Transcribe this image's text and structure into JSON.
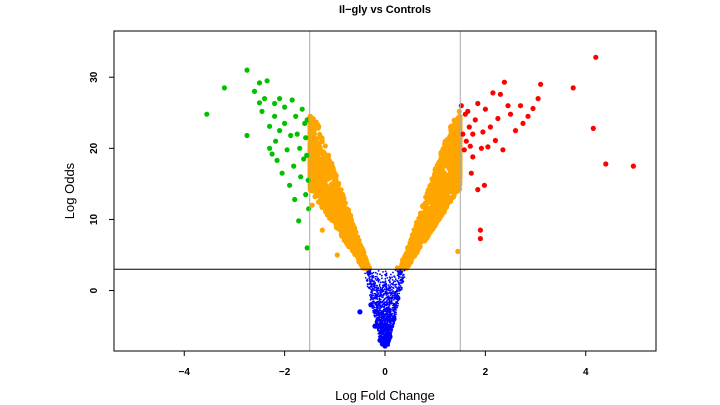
{
  "chart_data": {
    "type": "scatter",
    "title": "Il−gly vs Controls",
    "xlabel": "Log Fold Change",
    "ylabel": "Log Odds",
    "xlim": [
      -5.4,
      5.4
    ],
    "ylim": [
      -8.5,
      36.5
    ],
    "x_ticks": [
      {
        "value": -4,
        "label": "−4"
      },
      {
        "value": -2,
        "label": "−2"
      },
      {
        "value": 0,
        "label": "0"
      },
      {
        "value": 2,
        "label": "2"
      },
      {
        "value": 4,
        "label": "4"
      }
    ],
    "y_ticks": [
      {
        "value": 0,
        "label": "0"
      },
      {
        "value": 10,
        "label": "10"
      },
      {
        "value": 20,
        "label": "20"
      },
      {
        "value": 30,
        "label": "30"
      }
    ],
    "grid": false,
    "reference_lines": {
      "vertical": [
        -1.5,
        1.5
      ],
      "horizontal": [
        3
      ]
    },
    "colors": {
      "not_significant": "#0000ff",
      "significant_small_change": "#ffa500",
      "down_regulated": "#00c000",
      "up_regulated": "#ff0000"
    },
    "series": [
      {
        "color": "#00c000",
        "points": [
          [
            -3.55,
            24.8
          ],
          [
            -3.2,
            28.5
          ],
          [
            -2.75,
            31.0
          ],
          [
            -2.75,
            21.8
          ],
          [
            -2.6,
            28.0
          ],
          [
            -2.5,
            29.2
          ],
          [
            -2.5,
            26.4
          ],
          [
            -2.45,
            25.2
          ],
          [
            -2.4,
            27.0
          ],
          [
            -2.35,
            29.5
          ],
          [
            -2.3,
            23.1
          ],
          [
            -2.3,
            20.0
          ],
          [
            -2.25,
            19.2
          ],
          [
            -2.2,
            26.3
          ],
          [
            -2.2,
            24.5
          ],
          [
            -2.18,
            21.0
          ],
          [
            -2.15,
            18.3
          ],
          [
            -2.1,
            27.0
          ],
          [
            -2.1,
            22.5
          ],
          [
            -2.05,
            16.5
          ],
          [
            -2.0,
            25.8
          ],
          [
            -2.0,
            23.5
          ],
          [
            -1.95,
            19.8
          ],
          [
            -1.9,
            14.8
          ],
          [
            -1.88,
            21.8
          ],
          [
            -1.85,
            26.8
          ],
          [
            -1.82,
            17.5
          ],
          [
            -1.8,
            12.8
          ],
          [
            -1.78,
            24.5
          ],
          [
            -1.75,
            22.0
          ],
          [
            -1.72,
            9.8
          ],
          [
            -1.7,
            20.0
          ],
          [
            -1.68,
            16.0
          ],
          [
            -1.65,
            25.5
          ],
          [
            -1.62,
            18.5
          ],
          [
            -1.6,
            23.5
          ],
          [
            -1.58,
            13.5
          ],
          [
            -1.58,
            21.5
          ],
          [
            -1.56,
            19.0
          ],
          [
            -1.55,
            24.0
          ],
          [
            -1.55,
            6.0
          ],
          [
            -1.53,
            15.5
          ],
          [
            -1.52,
            11.5
          ]
        ]
      },
      {
        "color": "#ff0000",
        "points": [
          [
            1.52,
            26.0
          ],
          [
            1.55,
            22.0
          ],
          [
            1.58,
            19.8
          ],
          [
            1.6,
            24.8
          ],
          [
            1.62,
            21.0
          ],
          [
            1.65,
            25.2
          ],
          [
            1.68,
            23.0
          ],
          [
            1.7,
            20.3
          ],
          [
            1.72,
            16.5
          ],
          [
            1.75,
            22.0
          ],
          [
            1.75,
            18.8
          ],
          [
            1.8,
            24.0
          ],
          [
            1.85,
            14.2
          ],
          [
            1.85,
            26.3
          ],
          [
            1.9,
            8.5
          ],
          [
            1.9,
            7.3
          ],
          [
            1.92,
            20.0
          ],
          [
            1.95,
            22.3
          ],
          [
            1.98,
            14.8
          ],
          [
            2.0,
            25.5
          ],
          [
            2.05,
            20.2
          ],
          [
            2.1,
            23.0
          ],
          [
            2.15,
            27.8
          ],
          [
            2.2,
            21.1
          ],
          [
            2.25,
            24.2
          ],
          [
            2.3,
            27.6
          ],
          [
            2.35,
            19.8
          ],
          [
            2.38,
            29.3
          ],
          [
            2.45,
            26.0
          ],
          [
            2.5,
            24.8
          ],
          [
            2.6,
            22.5
          ],
          [
            2.7,
            26.0
          ],
          [
            2.75,
            23.5
          ],
          [
            2.85,
            24.5
          ],
          [
            2.95,
            25.6
          ],
          [
            3.05,
            27.0
          ],
          [
            3.1,
            29.0
          ],
          [
            3.75,
            28.5
          ],
          [
            4.15,
            22.8
          ],
          [
            4.2,
            32.8
          ],
          [
            4.4,
            17.8
          ],
          [
            4.95,
            17.5
          ]
        ]
      },
      {
        "color": "#ffa500",
        "points": [
          [
            -1.48,
            24.0
          ],
          [
            -1.45,
            12.0
          ],
          [
            -1.4,
            21.3
          ],
          [
            -1.35,
            16.0
          ],
          [
            -1.3,
            20.2
          ],
          [
            -1.25,
            8.5
          ],
          [
            -1.2,
            17.0
          ],
          [
            -1.1,
            14.0
          ],
          [
            -1.0,
            11.5
          ],
          [
            -0.95,
            5.0
          ],
          [
            -0.9,
            9.5
          ],
          [
            -0.75,
            7.3
          ],
          [
            -0.6,
            5.8
          ],
          [
            -0.45,
            4.2
          ],
          [
            -0.35,
            3.2
          ],
          [
            0.25,
            3.2
          ],
          [
            0.35,
            4.3
          ],
          [
            0.5,
            6.0
          ],
          [
            0.65,
            7.5
          ],
          [
            0.8,
            9.6
          ],
          [
            0.95,
            12.0
          ],
          [
            1.05,
            14.0
          ],
          [
            1.15,
            16.5
          ],
          [
            1.25,
            18.7
          ],
          [
            1.35,
            21.0
          ],
          [
            1.42,
            23.2
          ],
          [
            1.45,
            5.5
          ],
          [
            1.48,
            25.2
          ]
        ]
      },
      {
        "color": "#0000ff",
        "points": [
          [
            -0.32,
            2.5
          ],
          [
            -0.28,
            -2.0
          ],
          [
            -0.2,
            -5.0
          ],
          [
            -0.1,
            -7.0
          ],
          [
            0.0,
            -7.8
          ],
          [
            0.1,
            -6.5
          ],
          [
            0.18,
            -4.0
          ],
          [
            0.25,
            -1.0
          ],
          [
            0.3,
            2.5
          ],
          [
            -0.5,
            -3.0
          ]
        ]
      }
    ]
  }
}
